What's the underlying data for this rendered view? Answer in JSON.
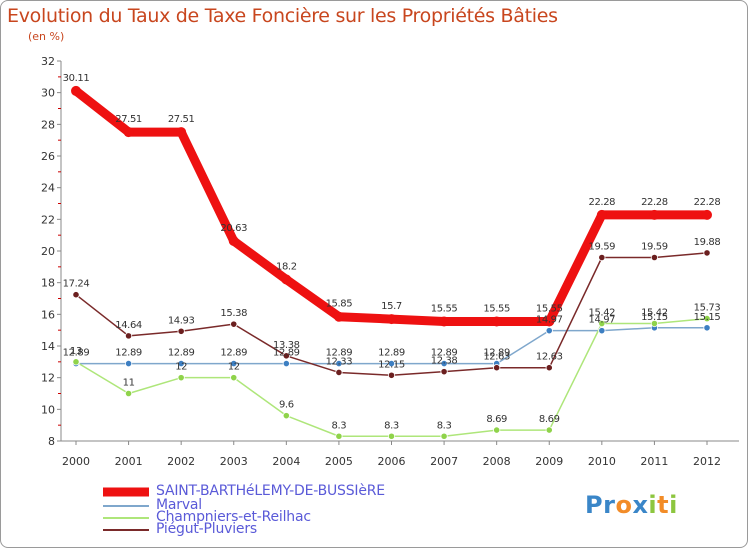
{
  "title": "Evolution du Taux de Taxe Foncière sur les Propriétés Bâties",
  "unit_label": "(en %)",
  "logo": {
    "text": "Proxiti",
    "letters": [
      "P",
      "r",
      "o",
      "x",
      "i",
      "t",
      "i"
    ],
    "colors": [
      "#3a86c8",
      "#3a86c8",
      "#f28c28",
      "#3a86c8",
      "#8dc63f",
      "#f28c28",
      "#8dc63f"
    ]
  },
  "chart_data": {
    "type": "line",
    "x": [
      "2000",
      "2001",
      "2002",
      "2003",
      "2004",
      "2005",
      "2006",
      "2007",
      "2008",
      "2009",
      "2010",
      "2011",
      "2012"
    ],
    "ylim": [
      8,
      32
    ],
    "yticks": [
      "8",
      "10",
      "12",
      "14",
      "16",
      "18",
      "20",
      "22",
      "24",
      "26",
      "28",
      "30",
      "32"
    ],
    "grid": false,
    "series": [
      {
        "name": "SAINT-BARTHéLEMY-DE-BUSSIèRE",
        "color": "#ee1111",
        "width": 9,
        "marker_fill": "#ee1111",
        "values": [
          30.11,
          27.51,
          27.51,
          20.63,
          18.2,
          15.85,
          15.7,
          15.55,
          15.55,
          15.55,
          22.28,
          22.28,
          22.28
        ],
        "labels": [
          "30.11",
          "27.51",
          "27.51",
          "20.63",
          "18.2",
          "15.85",
          "15.7",
          "15.55",
          "15.55",
          "15.55",
          "22.28",
          "22.28",
          "22.28"
        ]
      },
      {
        "name": "Marval",
        "color": "#7fa7cc",
        "width": 1.5,
        "marker_fill": "#3d7fc2",
        "values": [
          12.89,
          12.89,
          12.89,
          12.89,
          12.89,
          12.89,
          12.89,
          12.89,
          12.89,
          14.97,
          14.97,
          15.15,
          15.15
        ],
        "labels": [
          "12.89",
          "12.89",
          "12.89",
          "12.89",
          "12.89",
          "12.89",
          "12.89",
          "12.89",
          "12.89",
          "14.97",
          "14.97",
          "15.15",
          "15.15"
        ]
      },
      {
        "name": "Champniers-et-Reilhac",
        "color": "#aee67a",
        "width": 1.5,
        "marker_fill": "#8fd34a",
        "values": [
          13,
          11,
          12,
          12,
          9.6,
          8.3,
          8.3,
          8.3,
          8.69,
          8.69,
          15.42,
          15.42,
          15.73
        ],
        "labels": [
          "13",
          "11",
          "12",
          "12",
          "9.6",
          "8.3",
          "8.3",
          "8.3",
          "8.69",
          "8.69",
          "15.42",
          "15.42",
          "15.73"
        ]
      },
      {
        "name": "Piégut-Pluviers",
        "color": "#7a2a2a",
        "width": 1.5,
        "marker_fill": "#6b1f1f",
        "values": [
          17.24,
          14.64,
          14.93,
          15.38,
          13.38,
          12.33,
          12.15,
          12.38,
          12.63,
          12.63,
          19.59,
          19.59,
          19.88
        ],
        "labels": [
          "17.24",
          "14.64",
          "14.93",
          "15.38",
          "13.38",
          "12.33",
          "12.15",
          "12.38",
          "12.63",
          "12.63",
          "19.59",
          "19.59",
          "19.88"
        ]
      }
    ]
  }
}
